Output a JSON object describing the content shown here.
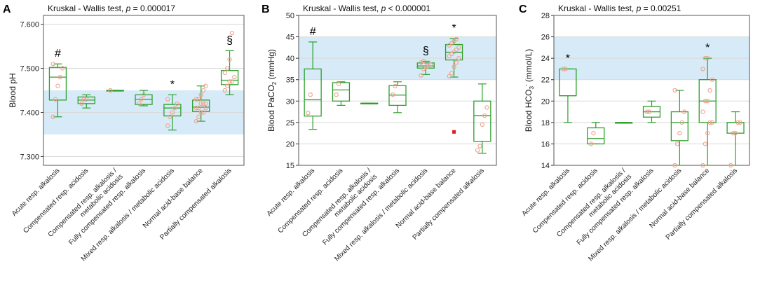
{
  "colors": {
    "box": "#2ca02c",
    "point": "#f2a08a",
    "band": "#d6eaf8",
    "outlier": "#e41a1c",
    "grid": "#d9d9d9"
  },
  "chart_data": [
    {
      "type": "box",
      "panel_label": "A",
      "title": "Kruskal - Wallis test, ",
      "title_p": "p",
      "title_value": " = 0.000017",
      "ylabel": "Blood pH",
      "ylim": [
        7.28,
        7.62
      ],
      "yticks": [
        7.3,
        7.4,
        7.5,
        7.6
      ],
      "ytick_labels": [
        "7.300",
        "7.400",
        "7.500",
        "7.600"
      ],
      "reference_band": [
        7.35,
        7.45
      ],
      "categories": [
        "Acute resp. alkalosis",
        "Compensated resp. acidosis",
        "Compensated resp. alkalosis /\nmetabolic acidosis",
        "Fully compensated resp. alkalosis",
        "Mixed resp. alkalosis / metabolic acidosis",
        "Normal acid-base balance",
        "Partially compensated alkalosis"
      ],
      "boxes": [
        {
          "min": 7.39,
          "q1": 7.428,
          "median": 7.48,
          "q3": 7.502,
          "max": 7.51,
          "points": [
            7.39,
            7.43,
            7.46,
            7.48,
            7.5,
            7.51
          ],
          "annotation": "#"
        },
        {
          "min": 7.41,
          "q1": 7.42,
          "median": 7.428,
          "q3": 7.435,
          "max": 7.44,
          "points": [
            7.42,
            7.43,
            7.43
          ],
          "annotation": ""
        },
        {
          "min": 7.45,
          "q1": 7.45,
          "median": 7.45,
          "q3": 7.45,
          "max": 7.45,
          "points": [
            7.45
          ],
          "annotation": ""
        },
        {
          "min": 7.415,
          "q1": 7.418,
          "median": 7.43,
          "q3": 7.44,
          "max": 7.45,
          "points": [
            7.42,
            7.43,
            7.44
          ],
          "annotation": ""
        },
        {
          "min": 7.36,
          "q1": 7.392,
          "median": 7.41,
          "q3": 7.418,
          "max": 7.44,
          "points": [
            7.37,
            7.39,
            7.4,
            7.41,
            7.42,
            7.43
          ],
          "annotation": "*"
        },
        {
          "min": 7.38,
          "q1": 7.402,
          "median": 7.412,
          "q3": 7.428,
          "max": 7.46,
          "points": [
            7.38,
            7.39,
            7.4,
            7.4,
            7.41,
            7.41,
            7.41,
            7.42,
            7.42,
            7.42,
            7.43,
            7.43,
            7.44,
            7.45,
            7.46
          ],
          "annotation": ""
        },
        {
          "min": 7.44,
          "q1": 7.463,
          "median": 7.473,
          "q3": 7.495,
          "max": 7.54,
          "points": [
            7.45,
            7.46,
            7.47,
            7.47,
            7.48,
            7.49,
            7.5,
            7.52,
            7.58
          ],
          "annotation": "§"
        }
      ]
    },
    {
      "type": "box",
      "panel_label": "B",
      "title": "Kruskal - Wallis test, ",
      "title_p": "p",
      "title_value": " < 0.000001",
      "ylabel": "Blood PaCO",
      "ylabel_sub": "2",
      "ylabel_tail": " (mmHg)",
      "ylim": [
        15,
        50
      ],
      "yticks": [
        15,
        20,
        25,
        30,
        35,
        40,
        45,
        50
      ],
      "ytick_labels": [
        "15",
        "20",
        "25",
        "30",
        "35",
        "40",
        "45",
        "50"
      ],
      "reference_band": [
        35,
        45
      ],
      "categories": [
        "Acute resp. alkalosis",
        "Compensated resp. acidosis",
        "Compensated resp. alkalosis /\nmetabolic acidosis",
        "Fully compensated resp. alkalosis",
        "Mixed resp. alkalosis / metabolic acidosis",
        "Normal acid-base balance",
        "Partially compensated alkalosis"
      ],
      "boxes": [
        {
          "min": 23.4,
          "q1": 26.5,
          "median": 30.3,
          "q3": 37.5,
          "max": 43.8,
          "points": [
            27.2,
            31.5
          ],
          "annotation": "#",
          "outliers": []
        },
        {
          "min": 29.0,
          "q1": 30.0,
          "median": 32.6,
          "q3": 34.3,
          "max": 34.5,
          "points": [
            31.5,
            34.0
          ],
          "annotation": "",
          "outliers": []
        },
        {
          "min": 29.5,
          "q1": 29.5,
          "median": 29.5,
          "q3": 29.5,
          "max": 29.5,
          "points": [],
          "annotation": "",
          "outliers": []
        },
        {
          "min": 27.3,
          "q1": 29.0,
          "median": 31.4,
          "q3": 33.6,
          "max": 34.5,
          "points": [
            31.5,
            33.5
          ],
          "annotation": "",
          "outliers": []
        },
        {
          "min": 36.2,
          "q1": 37.7,
          "median": 38.2,
          "q3": 38.9,
          "max": 39.3,
          "points": [
            36.0,
            37.5,
            38.0,
            38.2,
            38.5,
            39.0,
            39.3
          ],
          "annotation": "§",
          "outliers": []
        },
        {
          "min": 35.6,
          "q1": 39.6,
          "median": 41.4,
          "q3": 43.2,
          "max": 44.6,
          "points": [
            35.8,
            36.5,
            38.0,
            39.0,
            40.0,
            40.5,
            41.0,
            41.5,
            42.0,
            42.5,
            43.0,
            43.5,
            44.0,
            44.5
          ],
          "annotation": "*",
          "outliers": [
            22.8
          ]
        },
        {
          "min": 17.8,
          "q1": 20.6,
          "median": 26.6,
          "q3": 30.0,
          "max": 34.0,
          "points": [
            18.5,
            19.5,
            24.5,
            26.6,
            28.5
          ],
          "annotation": "",
          "outliers": []
        }
      ]
    },
    {
      "type": "box",
      "panel_label": "C",
      "title": "Kruskal - Wallis test, ",
      "title_p": "p",
      "title_value": " = 0.00251",
      "ylabel": "Blood HCO",
      "ylabel_sub": "3",
      "ylabel_sup": "-",
      "ylabel_tail": " (mmol/L)",
      "ylim": [
        14,
        28
      ],
      "yticks": [
        14,
        16,
        18,
        20,
        22,
        24,
        26,
        28
      ],
      "ytick_labels": [
        "14",
        "16",
        "18",
        "20",
        "22",
        "24",
        "26",
        "28"
      ],
      "reference_band": [
        22,
        26
      ],
      "categories": [
        "Acute resp. alkalosis",
        "Compensated resp. acidosis",
        "Compensated resp. alkalosis /\nmetabolic acidosis",
        "Fully compensated resp. alkalosis",
        "Mixed resp. alkalosis / metabolic acidosis",
        "Normal acid-base balance",
        "Partially compensated alkalosis"
      ],
      "boxes": [
        {
          "min": 18,
          "q1": 20.5,
          "median": 20.5,
          "q3": 23,
          "max": 23,
          "points": [
            23,
            23
          ],
          "annotation": "*"
        },
        {
          "min": 16,
          "q1": 16,
          "median": 16.5,
          "q3": 17.5,
          "max": 18,
          "points": [
            16,
            17
          ],
          "annotation": ""
        },
        {
          "min": 18,
          "q1": 18,
          "median": 18,
          "q3": 18,
          "max": 18,
          "points": [],
          "annotation": ""
        },
        {
          "min": 18,
          "q1": 18.5,
          "median": 19,
          "q3": 19.5,
          "max": 20,
          "points": [
            19,
            19
          ],
          "annotation": ""
        },
        {
          "min": 14,
          "q1": 16.3,
          "median": 18,
          "q3": 19,
          "max": 21,
          "points": [
            14,
            16,
            17,
            18,
            19,
            21
          ],
          "annotation": ""
        },
        {
          "min": 14,
          "q1": 18,
          "median": 20,
          "q3": 22,
          "max": 24,
          "points": [
            14,
            16,
            17,
            18,
            18,
            19,
            20,
            20,
            21,
            22,
            23,
            24,
            24
          ],
          "annotation": "*"
        },
        {
          "min": 14,
          "q1": 17,
          "median": 18,
          "q3": 18,
          "max": 19,
          "points": [
            14,
            17,
            17,
            18,
            18
          ],
          "annotation": ""
        }
      ]
    }
  ]
}
